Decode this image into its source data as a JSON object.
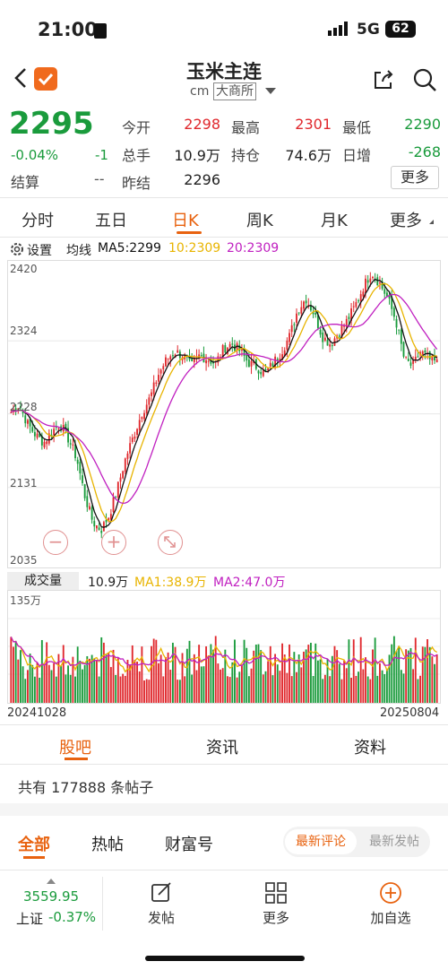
{
  "status_bar": {
    "time": "21:00",
    "network": "5G",
    "battery": "62"
  },
  "header": {
    "title": "玉米主连",
    "subtitle_code": "cm",
    "exchange": "大商所"
  },
  "quote": {
    "price": "2295",
    "change_pct": "-0.04%",
    "change": "-1",
    "open_label": "今开",
    "open": "2298",
    "high_label": "最高",
    "high": "2301",
    "low_label": "最低",
    "low": "2290",
    "volume_label": "总手",
    "volume": "10.9万",
    "oi_label": "持仓",
    "oi": "74.6万",
    "daily_inc_label": "日增",
    "daily_inc": "-268",
    "settle_label": "结算",
    "settle": "--",
    "prev_settle_label": "昨结",
    "prev_settle": "2296",
    "more_label": "更多"
  },
  "period_tabs": [
    "分时",
    "五日",
    "日K",
    "周K",
    "月K",
    "更多"
  ],
  "active_period": "日K",
  "ma_bar": {
    "settings_label": "设置",
    "ma_label": "均线",
    "ma5": "MA5:2299",
    "ma10": "10:2309",
    "ma20": "20:2309"
  },
  "volume_bar": {
    "label": "成交量",
    "value": "10.9万",
    "ma1": "MA1:38.9万",
    "ma2": "MA2:47.0万",
    "max_label": "135万"
  },
  "colors": {
    "up": "#e0282d",
    "down": "#1a9b3c",
    "ma5": "#111111",
    "ma10": "#e8b400",
    "ma20": "#c020c0",
    "accent": "#e8620f"
  },
  "chart_data": {
    "type": "candlestick",
    "x_start": "20241028",
    "x_end": "20250804",
    "y_ticks": [
      "2420",
      "2324",
      "2228",
      "2131",
      "2035"
    ],
    "ylim": [
      2035,
      2420
    ],
    "close_trend": [
      2230,
      2240,
      2215,
      2200,
      2190,
      2205,
      2215,
      2195,
      2170,
      2120,
      2085,
      2075,
      2095,
      2130,
      2170,
      2200,
      2230,
      2250,
      2280,
      2300,
      2310,
      2305,
      2290,
      2305,
      2300,
      2295,
      2315,
      2320,
      2310,
      2295,
      2290,
      2280,
      2295,
      2310,
      2330,
      2365,
      2380,
      2360,
      2330,
      2320,
      2335,
      2350,
      2370,
      2395,
      2415,
      2400,
      2380,
      2350,
      2300,
      2290,
      2310,
      2300,
      2295
    ]
  },
  "bottom_tabs": {
    "items": [
      "股吧",
      "资讯",
      "资料"
    ],
    "active": "股吧"
  },
  "posts": {
    "summary": "共有 177888 条帖子"
  },
  "filter_tabs": {
    "items": [
      "全部",
      "热帖",
      "财富号"
    ],
    "active": "全部",
    "sort_options": [
      "最新评论",
      "最新发帖"
    ],
    "sort_active": "最新评论"
  },
  "index_bar": {
    "value": "3559.95",
    "name": "上证",
    "change": "-0.37%"
  },
  "bottom_nav": {
    "post": "发帖",
    "more": "更多",
    "add": "加自选"
  }
}
